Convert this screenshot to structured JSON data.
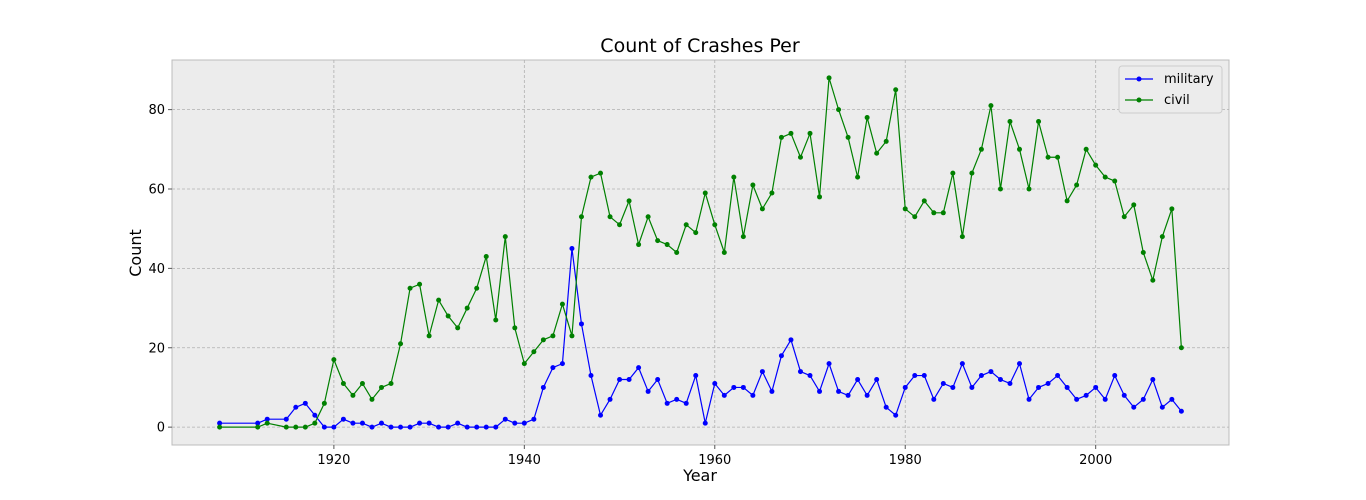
{
  "chart_data": {
    "type": "line",
    "title": "Count of Crashes Per",
    "xlabel": "Year",
    "ylabel": "Count",
    "xlim": [
      1903,
      2014
    ],
    "ylim": [
      -4.5,
      92.5
    ],
    "x_ticks": [
      1920,
      1940,
      1960,
      1980,
      2000
    ],
    "y_ticks": [
      0,
      20,
      40,
      60,
      80
    ],
    "grid": true,
    "legend_position": "top-right",
    "series": [
      {
        "name": "military",
        "color": "#0000ff",
        "x": [
          1908,
          1912,
          1913,
          1915,
          1916,
          1917,
          1918,
          1919,
          1920,
          1921,
          1922,
          1923,
          1924,
          1925,
          1926,
          1927,
          1928,
          1929,
          1930,
          1931,
          1932,
          1933,
          1934,
          1935,
          1936,
          1937,
          1938,
          1939,
          1940,
          1941,
          1942,
          1943,
          1944,
          1945,
          1946,
          1947,
          1948,
          1949,
          1950,
          1951,
          1952,
          1953,
          1954,
          1955,
          1956,
          1957,
          1958,
          1959,
          1960,
          1961,
          1962,
          1963,
          1964,
          1965,
          1966,
          1967,
          1968,
          1969,
          1970,
          1971,
          1972,
          1973,
          1974,
          1975,
          1976,
          1977,
          1978,
          1979,
          1980,
          1981,
          1982,
          1983,
          1984,
          1985,
          1986,
          1987,
          1988,
          1989,
          1990,
          1991,
          1992,
          1993,
          1994,
          1995,
          1996,
          1997,
          1998,
          1999,
          2000,
          2001,
          2002,
          2003,
          2004,
          2005,
          2006,
          2007,
          2008,
          2009
        ],
        "y": [
          1,
          1,
          2,
          2,
          5,
          6,
          3,
          0,
          0,
          2,
          1,
          1,
          0,
          1,
          0,
          0,
          0,
          1,
          1,
          0,
          0,
          1,
          0,
          0,
          0,
          0,
          2,
          1,
          1,
          2,
          10,
          15,
          16,
          45,
          26,
          13,
          3,
          7,
          12,
          12,
          15,
          9,
          12,
          6,
          7,
          6,
          13,
          1,
          11,
          8,
          10,
          10,
          8,
          14,
          9,
          18,
          22,
          14,
          13,
          9,
          16,
          9,
          8,
          12,
          8,
          12,
          5,
          3,
          10,
          13,
          13,
          7,
          11,
          10,
          16,
          10,
          13,
          14,
          12,
          11,
          16,
          7,
          10,
          11,
          13,
          10,
          7,
          8,
          10,
          7,
          13,
          8,
          5,
          7,
          12,
          5,
          7,
          4
        ]
      },
      {
        "name": "civil",
        "color": "#008000",
        "x": [
          1908,
          1912,
          1913,
          1915,
          1916,
          1917,
          1918,
          1919,
          1920,
          1921,
          1922,
          1923,
          1924,
          1925,
          1926,
          1927,
          1928,
          1929,
          1930,
          1931,
          1932,
          1933,
          1934,
          1935,
          1936,
          1937,
          1938,
          1939,
          1940,
          1941,
          1942,
          1943,
          1944,
          1945,
          1946,
          1947,
          1948,
          1949,
          1950,
          1951,
          1952,
          1953,
          1954,
          1955,
          1956,
          1957,
          1958,
          1959,
          1960,
          1961,
          1962,
          1963,
          1964,
          1965,
          1966,
          1967,
          1968,
          1969,
          1970,
          1971,
          1972,
          1973,
          1974,
          1975,
          1976,
          1977,
          1978,
          1979,
          1980,
          1981,
          1982,
          1983,
          1984,
          1985,
          1986,
          1987,
          1988,
          1989,
          1990,
          1991,
          1992,
          1993,
          1994,
          1995,
          1996,
          1997,
          1998,
          1999,
          2000,
          2001,
          2002,
          2003,
          2004,
          2005,
          2006,
          2007,
          2008,
          2009
        ],
        "y": [
          0,
          0,
          1,
          0,
          0,
          0,
          1,
          6,
          17,
          11,
          8,
          11,
          7,
          10,
          11,
          21,
          35,
          36,
          23,
          32,
          28,
          25,
          30,
          35,
          43,
          27,
          48,
          25,
          16,
          19,
          22,
          23,
          31,
          23,
          53,
          63,
          64,
          53,
          51,
          57,
          46,
          53,
          47,
          46,
          44,
          51,
          49,
          59,
          51,
          44,
          63,
          48,
          61,
          55,
          59,
          73,
          74,
          68,
          74,
          58,
          88,
          80,
          73,
          63,
          78,
          69,
          72,
          85,
          55,
          53,
          57,
          54,
          54,
          64,
          48,
          64,
          70,
          81,
          60,
          77,
          70,
          60,
          77,
          68,
          68,
          57,
          61,
          70,
          66,
          63,
          62,
          53,
          56,
          44,
          37,
          48,
          55,
          20
        ]
      }
    ]
  }
}
